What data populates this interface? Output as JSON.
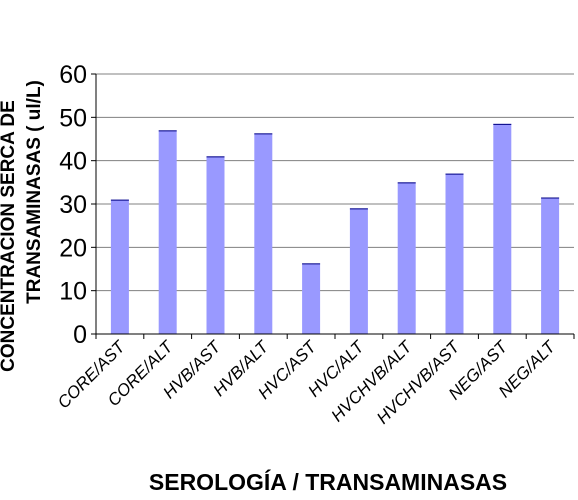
{
  "chart_data": {
    "type": "bar",
    "title": "",
    "categories": [
      "CORE/AST",
      "CORE/ALT",
      "HVB/AST",
      "HVB/ALT",
      "HVC/AST",
      "HVC/ALT",
      "HVCHVB/ALT",
      "HVCHVB/AST",
      "NEG/AST",
      "NEG/ALT"
    ],
    "values": [
      31,
      47,
      41,
      46.3,
      16.3,
      29,
      35,
      37,
      48.5,
      31.5
    ],
    "xlabel": "SEROLOGÍA / TRANSAMINASAS",
    "ylabel_lines": [
      "CONCENTRACION SERCA DE",
      "TRANSAMINASAS ( ul/L)"
    ],
    "ylim": [
      0,
      60
    ],
    "yticks": [
      "0",
      "10",
      "20",
      "30",
      "40",
      "50",
      "60"
    ],
    "grid": true,
    "bar_color": "#9999ff",
    "bar_outline_color": "#000080",
    "grid_color": "#808080"
  }
}
